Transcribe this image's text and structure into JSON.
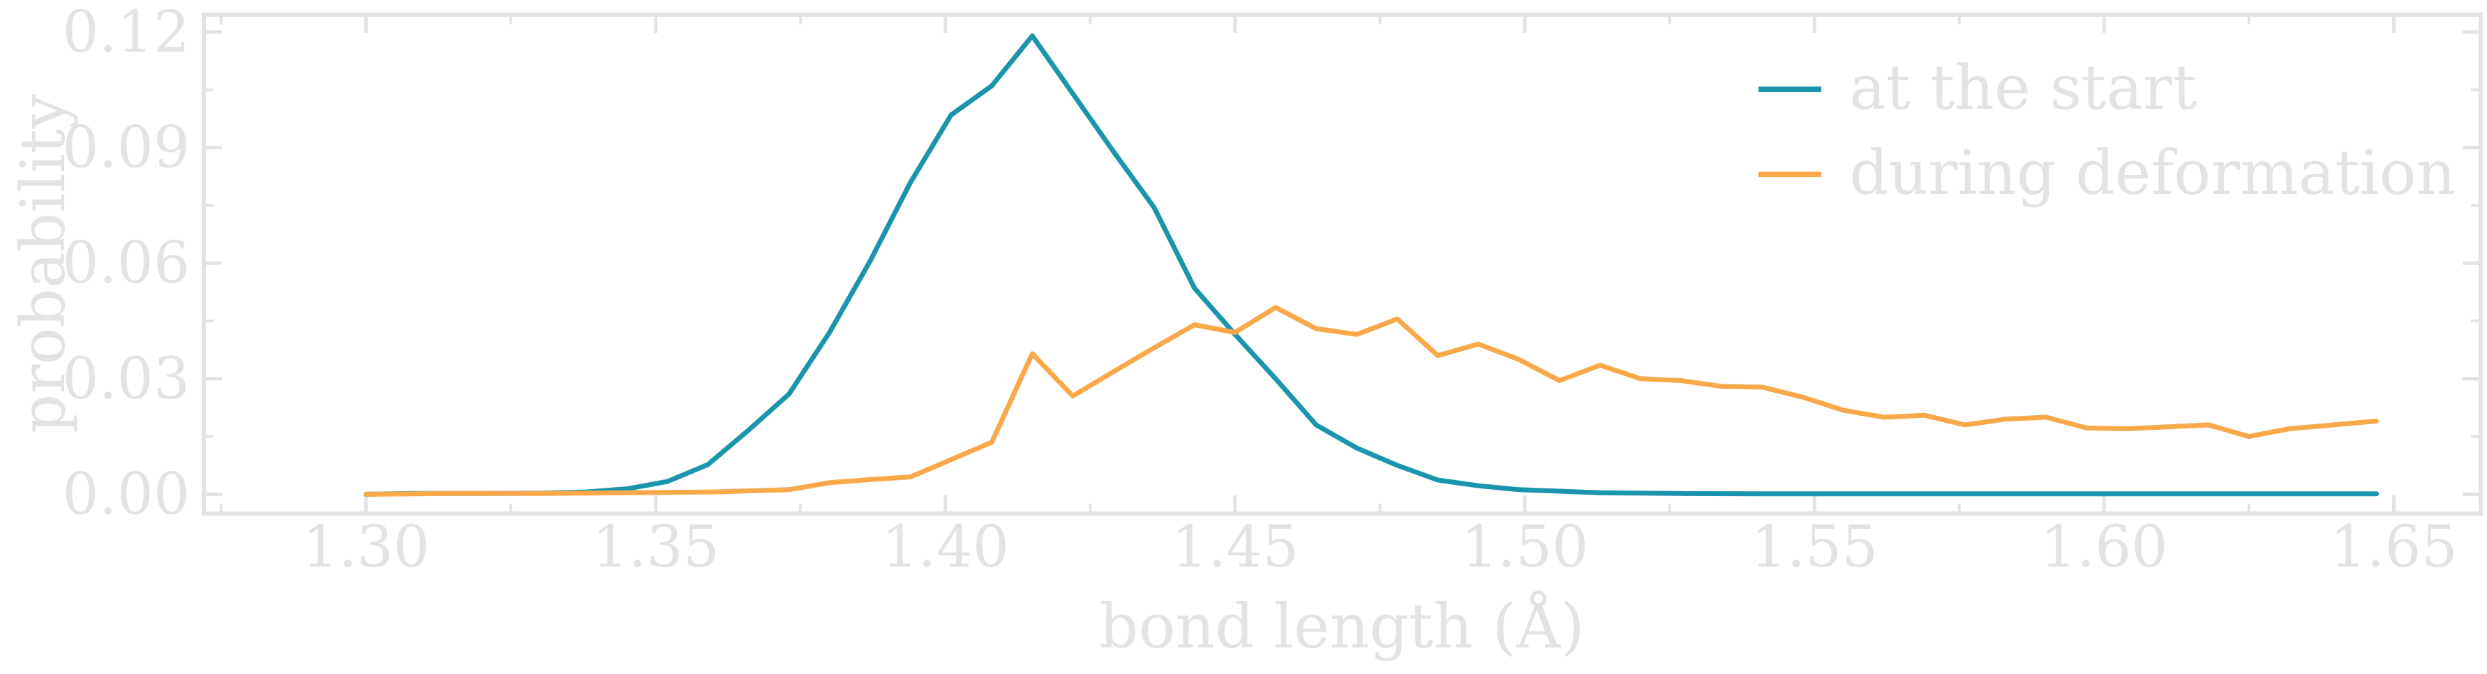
{
  "chart_data": {
    "type": "line",
    "xlabel": "bond length (Å)",
    "ylabel": "probability",
    "xlim": [
      1.272,
      1.665
    ],
    "ylim": [
      -0.005,
      0.1245
    ],
    "xticks": [
      1.3,
      1.35,
      1.4,
      1.45,
      1.5,
      1.55,
      1.6,
      1.65
    ],
    "xtick_labels": [
      "1.30",
      "1.35",
      "1.40",
      "1.45",
      "1.50",
      "1.55",
      "1.60",
      "1.65"
    ],
    "yticks": [
      0.0,
      0.03,
      0.06,
      0.09,
      0.12
    ],
    "ytick_labels": [
      "0.00",
      "0.03",
      "0.06",
      "0.09",
      "0.12"
    ],
    "grid": false,
    "legend_position": "top-right",
    "colors": {
      "axis": "#e3e3e3",
      "text": "#e3e3e3",
      "at_the_start": "#1a95ad",
      "during_deformation": "#f9a84a"
    },
    "series": [
      {
        "name": "at the start",
        "color": "#1a95ad",
        "x": [
          1.3,
          1.308,
          1.32,
          1.331,
          1.338,
          1.345,
          1.352,
          1.359,
          1.366,
          1.373,
          1.38,
          1.387,
          1.394,
          1.401,
          1.408,
          1.415,
          1.422,
          1.429,
          1.436,
          1.443,
          1.45,
          1.457,
          1.464,
          1.471,
          1.478,
          1.485,
          1.492,
          1.499,
          1.513,
          1.527,
          1.541,
          1.555,
          1.569,
          1.583,
          1.597,
          1.611,
          1.625,
          1.647
        ],
        "y": [
          0.0,
          0.0002,
          0.0002,
          0.0003,
          0.0006,
          0.0014,
          0.0033,
          0.0077,
          0.0166,
          0.026,
          0.042,
          0.0605,
          0.081,
          0.0985,
          0.106,
          0.119,
          0.104,
          0.089,
          0.0745,
          0.0535,
          0.0415,
          0.03,
          0.018,
          0.012,
          0.0075,
          0.0037,
          0.0022,
          0.0012,
          0.0004,
          0.0002,
          0.0001,
          0.0001,
          0.0001,
          0.0001,
          0.0001,
          0.0001,
          0.0001,
          0.0001
        ]
      },
      {
        "name": "during deformation",
        "color": "#f9a84a",
        "x": [
          1.3,
          1.315,
          1.33,
          1.345,
          1.36,
          1.373,
          1.38,
          1.387,
          1.394,
          1.401,
          1.408,
          1.415,
          1.422,
          1.429,
          1.436,
          1.443,
          1.45,
          1.457,
          1.464,
          1.471,
          1.478,
          1.485,
          1.492,
          1.499,
          1.506,
          1.513,
          1.52,
          1.527,
          1.534,
          1.541,
          1.548,
          1.555,
          1.562,
          1.569,
          1.576,
          1.583,
          1.59,
          1.597,
          1.604,
          1.611,
          1.618,
          1.625,
          1.632,
          1.647
        ],
        "y": [
          0.0,
          0.0002,
          0.0002,
          0.0004,
          0.0006,
          0.0012,
          0.003,
          0.0038,
          0.0045,
          0.009,
          0.0135,
          0.0365,
          0.0255,
          0.0318,
          0.038,
          0.044,
          0.042,
          0.0485,
          0.043,
          0.0415,
          0.0455,
          0.036,
          0.039,
          0.035,
          0.0295,
          0.0335,
          0.03,
          0.0295,
          0.028,
          0.0278,
          0.0252,
          0.0218,
          0.02,
          0.0205,
          0.018,
          0.0195,
          0.02,
          0.0172,
          0.017,
          0.0175,
          0.018,
          0.015,
          0.017,
          0.019
        ]
      }
    ]
  }
}
